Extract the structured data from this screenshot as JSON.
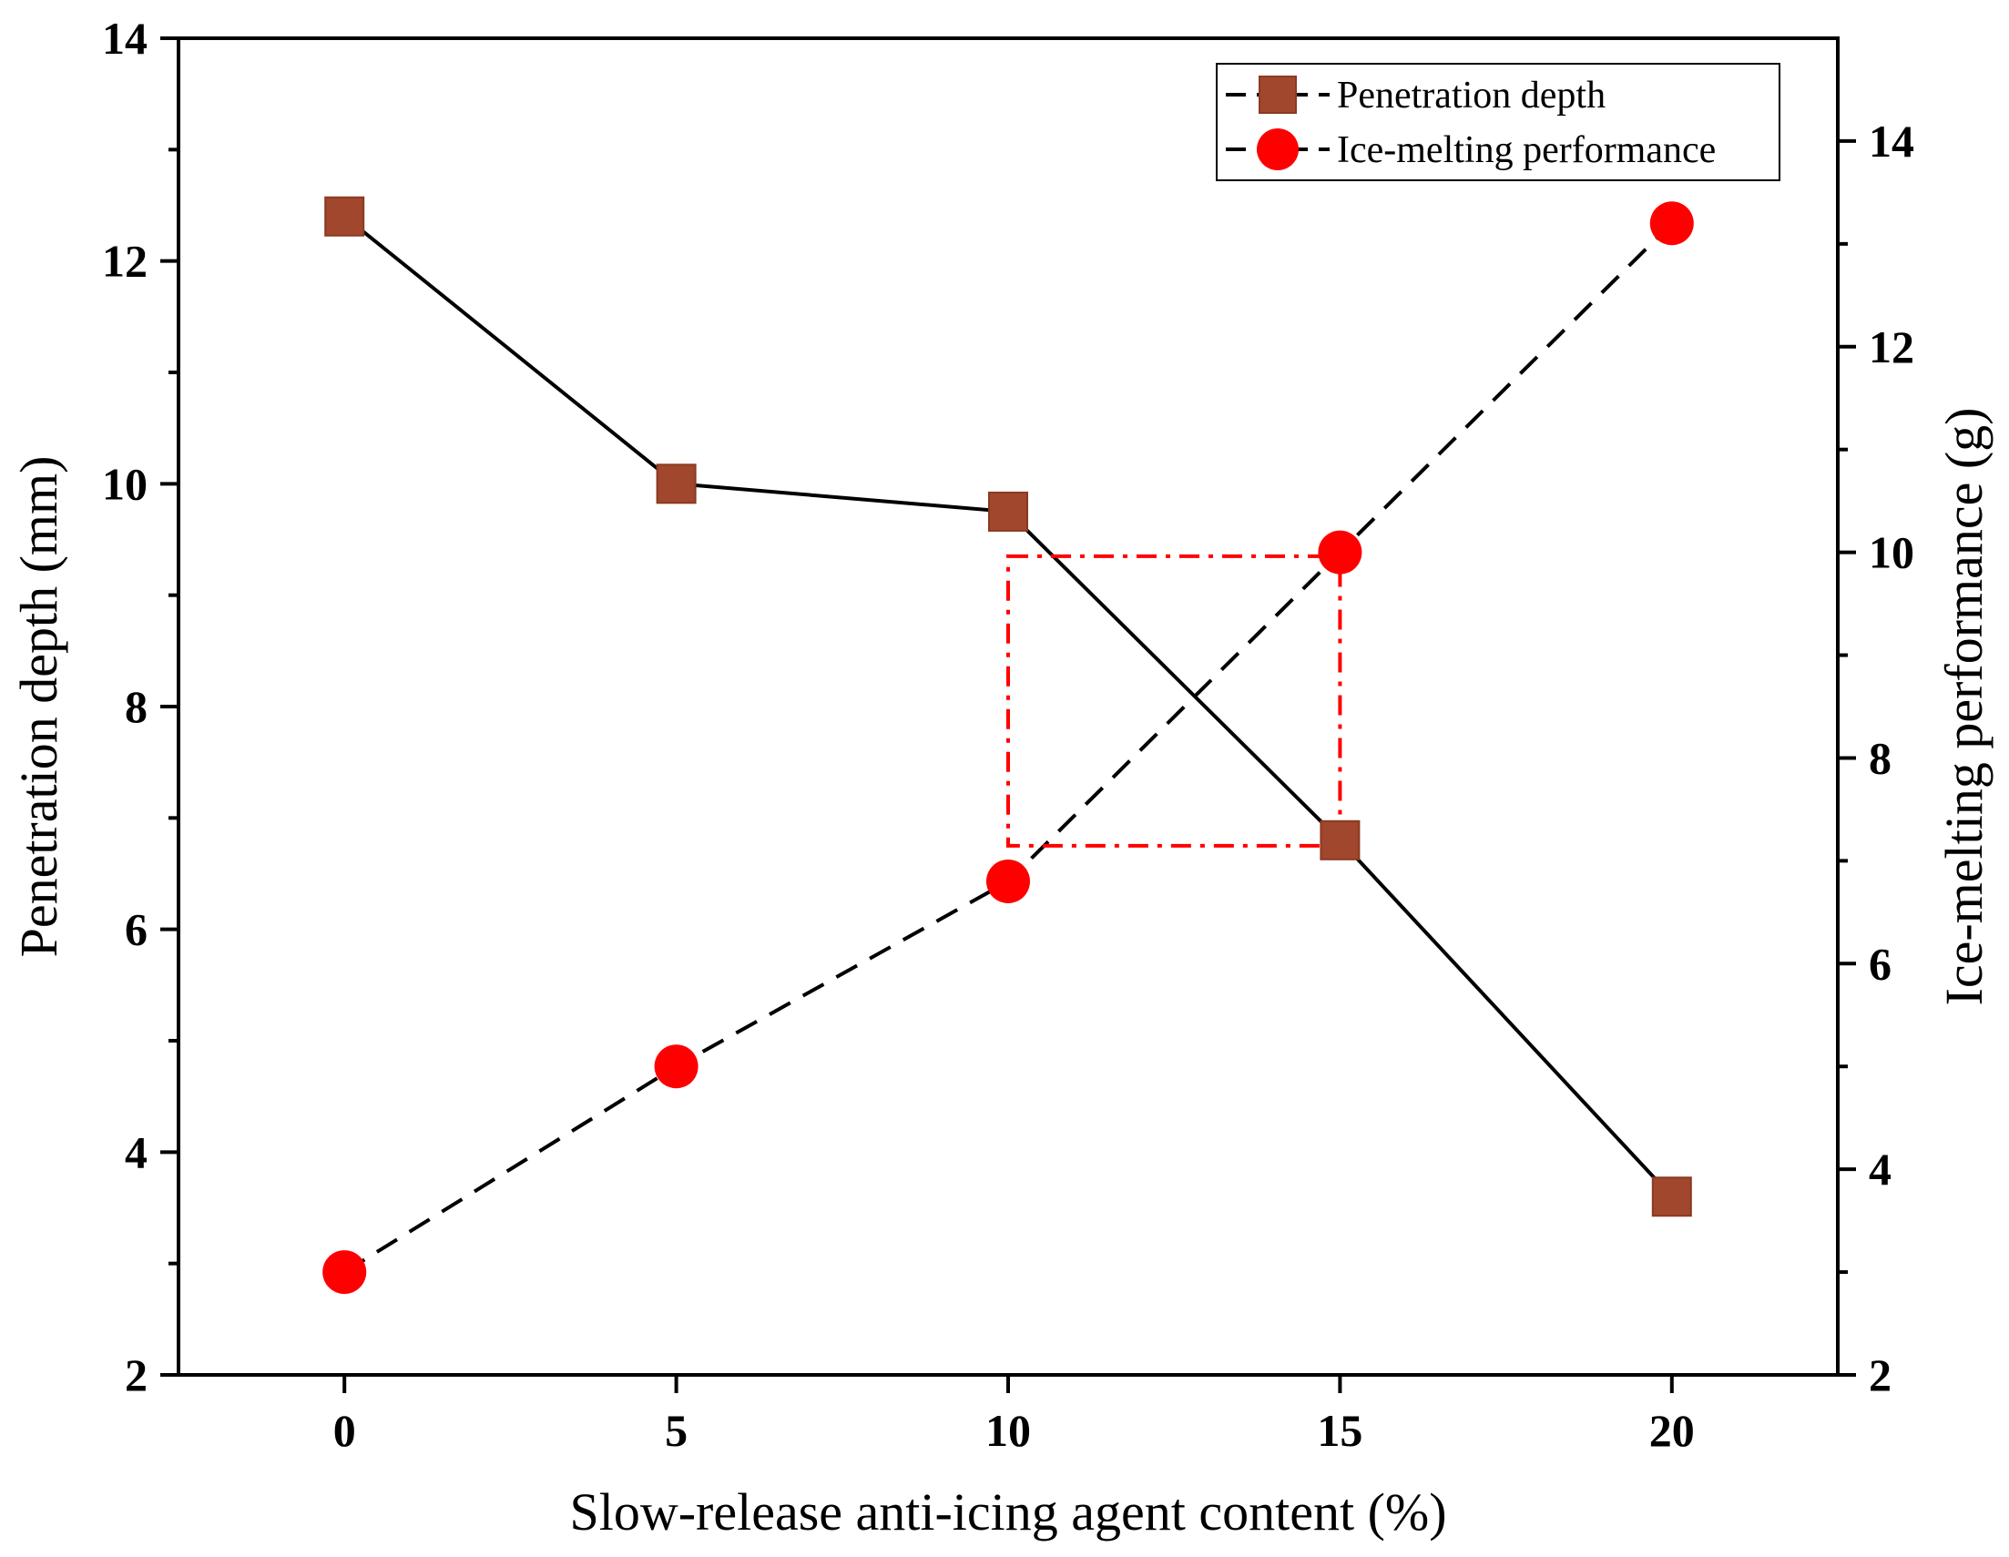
{
  "chart_data": {
    "type": "line",
    "xlabel": "Slow-release anti-icing agent content (%)",
    "ylabel_left": "Penetration depth (mm)",
    "ylabel_right": "Ice-melting performance (g)",
    "xlim": [
      -2.5,
      22.5
    ],
    "ylim_left": [
      2,
      14
    ],
    "ylim_right": [
      2,
      15
    ],
    "x_ticks": [
      0,
      5,
      10,
      15,
      20
    ],
    "x_tick_labels": [
      "0",
      "5",
      "10",
      "15",
      "20"
    ],
    "y_left_ticks": [
      2,
      4,
      6,
      8,
      10,
      12,
      14
    ],
    "y_left_tick_labels": [
      "2",
      "4",
      "6",
      "8",
      "10",
      "12",
      "14"
    ],
    "y_right_ticks": [
      2,
      4,
      6,
      8,
      10,
      12,
      14
    ],
    "y_right_tick_labels": [
      "2",
      "4",
      "6",
      "8",
      "10",
      "12",
      "14"
    ],
    "series": [
      {
        "name": "Penetration depth",
        "axis": "left",
        "marker": "square",
        "line_style": "solid",
        "color": "#a0472d",
        "x": [
          0,
          5,
          10,
          15,
          20
        ],
        "values": [
          12.4,
          10.0,
          9.75,
          6.8,
          3.6
        ]
      },
      {
        "name": "Ice-melting performance",
        "axis": "right",
        "marker": "circle",
        "line_style": "dashed",
        "color": "#ff0000",
        "x": [
          0,
          5,
          10,
          15,
          20
        ],
        "values": [
          3.0,
          5.0,
          6.8,
          10.0,
          13.2
        ]
      }
    ],
    "legend": {
      "position": "top-right",
      "entries": [
        "Penetration depth",
        "Ice-melting performance"
      ]
    },
    "annotation_box": {
      "style": "dash-dot",
      "color": "#ff0000",
      "x_range": [
        10,
        15
      ],
      "y_range_left": [
        6.75,
        9.35
      ]
    }
  }
}
